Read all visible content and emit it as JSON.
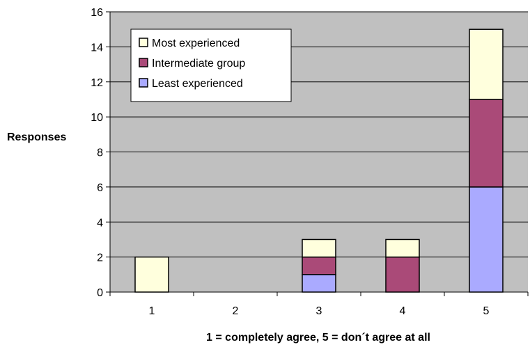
{
  "chart_data": {
    "type": "bar",
    "stacked": true,
    "categories": [
      "1",
      "2",
      "3",
      "4",
      "5"
    ],
    "series": [
      {
        "name": "Least experienced",
        "values": [
          0,
          0,
          1,
          0,
          6
        ],
        "color": "#aaaaff"
      },
      {
        "name": "Intermediate group",
        "values": [
          0,
          0,
          1,
          2,
          5
        ],
        "color": "#aa4a78"
      },
      {
        "name": "Most experienced",
        "values": [
          2,
          0,
          1,
          1,
          4
        ],
        "color": "#ffffdd"
      }
    ],
    "xlabel": "1 = completely agree, 5 = don´t agree at all",
    "ylabel": "Responses",
    "ylim": [
      0,
      16
    ],
    "yticks": [
      0,
      2,
      4,
      6,
      8,
      10,
      12,
      14,
      16
    ],
    "grid": true,
    "legend_position": "top-left",
    "plot_background": "#c0c0c0",
    "legend_order": [
      "Most experienced",
      "Intermediate group",
      "Least experienced"
    ]
  }
}
